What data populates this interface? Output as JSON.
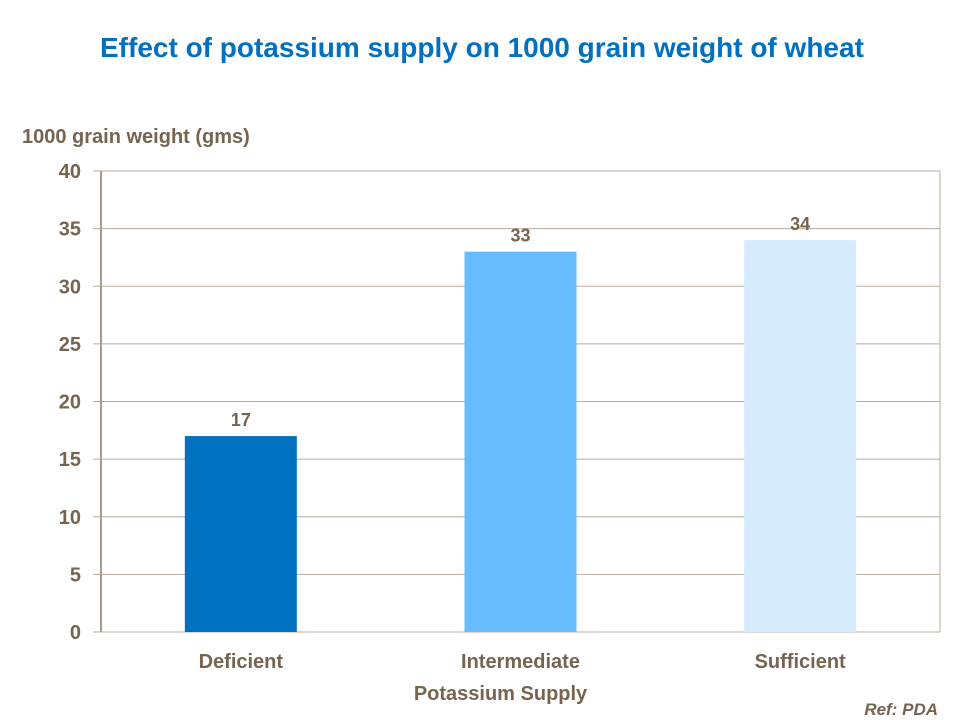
{
  "chart_data": {
    "type": "bar",
    "title": "Effect of potassium  supply on 1000 grain weight of wheat",
    "ylabel": "1000 grain weight (gms)",
    "xlabel": "Potassium Supply",
    "categories": [
      "Deficient",
      "Intermediate",
      "Sufficient"
    ],
    "values": [
      17,
      33,
      34
    ],
    "colors": [
      "#0070c0",
      "#66bcff",
      "#d6ebfd"
    ],
    "ylim": [
      0,
      40
    ],
    "yticks": [
      0,
      5,
      10,
      15,
      20,
      25,
      30,
      35,
      40
    ],
    "grid": true,
    "data_labels": true
  },
  "footer": {
    "ref": "Ref: PDA"
  }
}
